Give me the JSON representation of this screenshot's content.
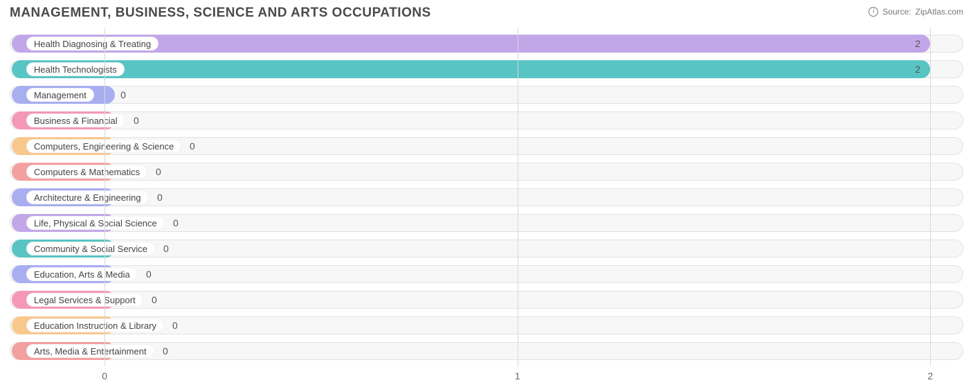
{
  "chart": {
    "title": "MANAGEMENT, BUSINESS, SCIENCE AND ARTS OCCUPATIONS",
    "source_prefix": "Source:",
    "source_name": "ZipAtlas.com",
    "type": "bar-horizontal",
    "xmin": -0.23,
    "xmax": 2.08,
    "xticks": [
      0,
      1,
      2
    ],
    "xtick_labels": [
      "0",
      "1",
      "2"
    ],
    "grid_color": "#d8d8d8",
    "track_bg": "#f7f7f7",
    "track_border": "#e2e2e2",
    "pill_text_color": "#444444",
    "value_text_color": "#555555",
    "title_color": "#4a4a4a",
    "label_fontsize": 13,
    "value_fontsize": 14,
    "title_fontsize": 19,
    "min_bar_x_end": 0.025,
    "palette": [
      "#c2a7e8",
      "#58c4c4",
      "#a8aef0",
      "#f598b6",
      "#f9c88d",
      "#f3a0a0"
    ],
    "data": [
      {
        "label": "Health Diagnosing & Treating",
        "value": 2,
        "value_label": "2",
        "color": "#c2a7e8"
      },
      {
        "label": "Health Technologists",
        "value": 2,
        "value_label": "2",
        "color": "#58c4c4"
      },
      {
        "label": "Management",
        "value": 0,
        "value_label": "0",
        "color": "#a8aef0"
      },
      {
        "label": "Business & Financial",
        "value": 0,
        "value_label": "0",
        "color": "#f598b6"
      },
      {
        "label": "Computers, Engineering & Science",
        "value": 0,
        "value_label": "0",
        "color": "#f9c88d"
      },
      {
        "label": "Computers & Mathematics",
        "value": 0,
        "value_label": "0",
        "color": "#f3a0a0"
      },
      {
        "label": "Architecture & Engineering",
        "value": 0,
        "value_label": "0",
        "color": "#a8aef0"
      },
      {
        "label": "Life, Physical & Social Science",
        "value": 0,
        "value_label": "0",
        "color": "#c2a7e8"
      },
      {
        "label": "Community & Social Service",
        "value": 0,
        "value_label": "0",
        "color": "#58c4c4"
      },
      {
        "label": "Education, Arts & Media",
        "value": 0,
        "value_label": "0",
        "color": "#a8aef0"
      },
      {
        "label": "Legal Services & Support",
        "value": 0,
        "value_label": "0",
        "color": "#f598b6"
      },
      {
        "label": "Education Instruction & Library",
        "value": 0,
        "value_label": "0",
        "color": "#f9c88d"
      },
      {
        "label": "Arts, Media & Entertainment",
        "value": 0,
        "value_label": "0",
        "color": "#f3a0a0"
      }
    ]
  }
}
